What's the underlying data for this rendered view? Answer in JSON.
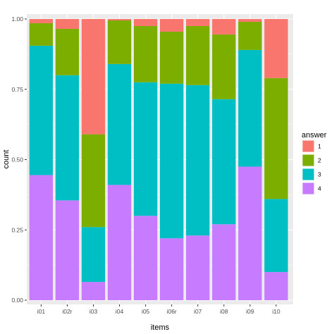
{
  "chart_data": {
    "type": "bar",
    "stacked": true,
    "xlabel": "items",
    "ylabel": "count",
    "ylim": [
      0,
      1
    ],
    "yticks": [
      "0.00",
      "0.25",
      "0.50",
      "0.75",
      "1.00"
    ],
    "categories": [
      "i01",
      "i02r",
      "i03",
      "i04",
      "i05",
      "i06r",
      "i07",
      "i08",
      "i09",
      "i10"
    ],
    "legend": {
      "title": "answer",
      "placement": "right"
    },
    "grid": true,
    "background_color": "#EBEBEB",
    "series": [
      {
        "name": "4",
        "color": "#C77CFF",
        "values": [
          0.445,
          0.355,
          0.065,
          0.41,
          0.3,
          0.22,
          0.23,
          0.27,
          0.475,
          0.1
        ]
      },
      {
        "name": "3",
        "color": "#00BFC4",
        "values": [
          0.46,
          0.445,
          0.195,
          0.43,
          0.475,
          0.55,
          0.535,
          0.445,
          0.415,
          0.26
        ]
      },
      {
        "name": "2",
        "color": "#7CAE00",
        "values": [
          0.08,
          0.165,
          0.33,
          0.155,
          0.2,
          0.185,
          0.21,
          0.23,
          0.1,
          0.43
        ]
      },
      {
        "name": "1",
        "color": "#F8766D",
        "values": [
          0.015,
          0.035,
          0.41,
          0.005,
          0.025,
          0.045,
          0.025,
          0.055,
          0.01,
          0.21
        ]
      }
    ],
    "legend_order": [
      "1",
      "2",
      "3",
      "4"
    ]
  }
}
